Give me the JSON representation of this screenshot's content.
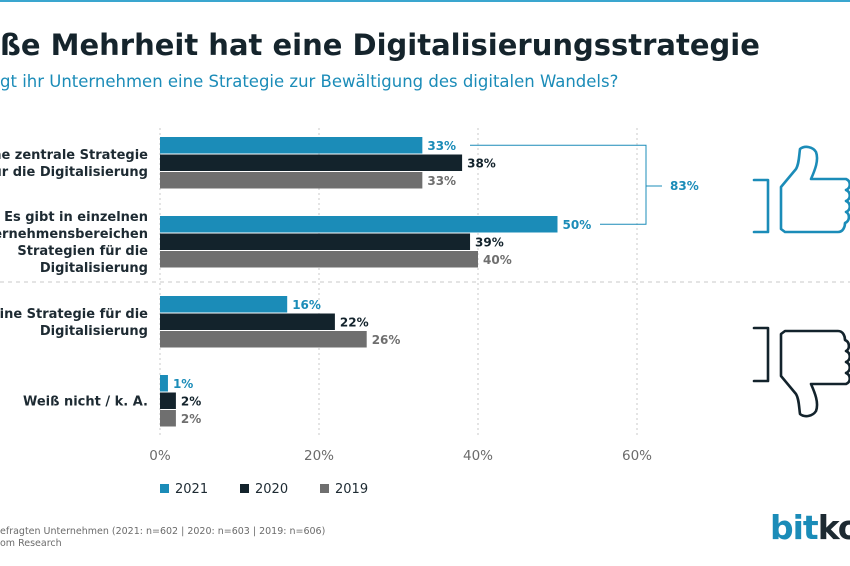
{
  "header": {
    "title": "ße Mehrheit hat eine Digitalisierungsstrategie",
    "subtitle": "gt ihr Unternehmen eine Strategie zur Bewältigung des digitalen Wandels?"
  },
  "colors": {
    "2021": "#1b8cb8",
    "2020": "#13232c",
    "2019": "#6f6f6f",
    "accent": "#1b8cb8",
    "icon_down": "#13232c"
  },
  "chart_data": {
    "type": "bar",
    "orientation": "horizontal",
    "categories": [
      [
        "eine zentrale Strategie",
        "für die Digitalisierung"
      ],
      [
        "Es gibt in einzelnen",
        "Unternehmensbereichen",
        "Strategien für die",
        "Digitalisierung"
      ],
      [
        "t keine Strategie für die",
        "Digitalisierung"
      ],
      [
        "Weiß nicht / k. A."
      ]
    ],
    "series": [
      {
        "name": "2021",
        "values": [
          33,
          50,
          16,
          1
        ]
      },
      {
        "name": "2020",
        "values": [
          38,
          39,
          22,
          2
        ]
      },
      {
        "name": "2019",
        "values": [
          33,
          40,
          26,
          2
        ]
      }
    ],
    "value_suffix": "%",
    "xlim": [
      0,
      60
    ],
    "xticks": [
      "0%",
      "20%",
      "40%",
      "60%"
    ],
    "grid": "vertical dashed",
    "legend": "bottom",
    "bracket_annotation": "83%"
  },
  "icons": [
    "thumbs-up-icon",
    "thumbs-down-icon"
  ],
  "footnotes": [
    "efragten Unternehmen (2021: n=602 | 2020: n=603 | 2019: n=606)",
    "om Research"
  ],
  "logo": {
    "part1": "bit",
    "part2": "ko"
  }
}
